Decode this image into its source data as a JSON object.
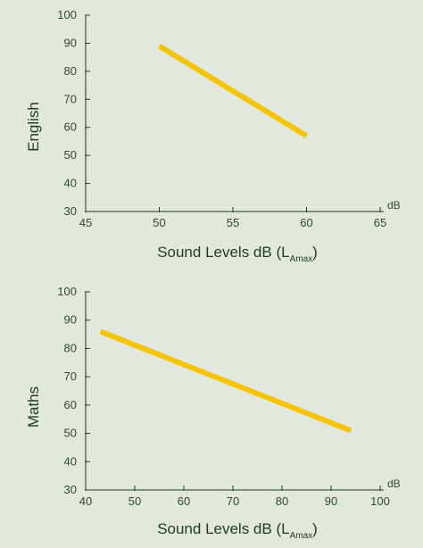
{
  "chart_data": [
    {
      "type": "line",
      "title": "",
      "xlabel": "Sound Levels dB (L",
      "xlabel_sub": "Amax",
      "xlabel_end": ")",
      "ylabel": "English",
      "x_unit": "dB",
      "xlim": [
        45,
        65
      ],
      "ylim": [
        30,
        100
      ],
      "xticks": [
        45,
        50,
        55,
        60,
        65
      ],
      "yticks": [
        30,
        40,
        50,
        60,
        70,
        80,
        90,
        100
      ],
      "grid": false,
      "legend": "none",
      "series": [
        {
          "color": "#f5c400",
          "x": [
            50,
            60
          ],
          "y": [
            89,
            57
          ]
        }
      ]
    },
    {
      "type": "line",
      "title": "",
      "xlabel": "Sound Levels dB (L",
      "xlabel_sub": "Amax",
      "xlabel_end": ")",
      "ylabel": "Maths",
      "x_unit": "dB",
      "xlim": [
        40,
        100
      ],
      "ylim": [
        30,
        100
      ],
      "xticks": [
        40,
        50,
        60,
        70,
        80,
        90,
        100
      ],
      "yticks": [
        30,
        40,
        50,
        60,
        70,
        80,
        90,
        100
      ],
      "grid": false,
      "legend": "none",
      "series": [
        {
          "color": "#f5c400",
          "x": [
            43,
            94
          ],
          "y": [
            86,
            51
          ]
        }
      ]
    }
  ]
}
